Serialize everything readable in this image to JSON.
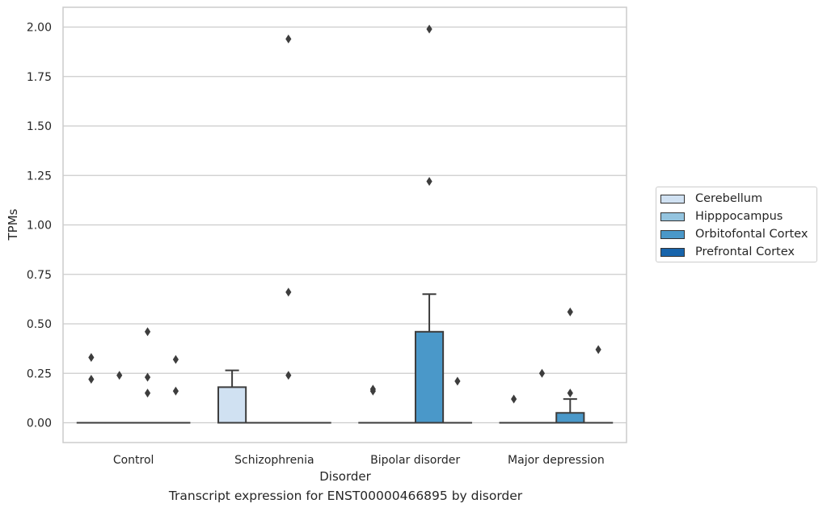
{
  "chart_data": {
    "type": "box",
    "xlabel": "Disorder",
    "ylabel": "TPMs",
    "caption": "Transcript expression for ENST00000466895 by disorder",
    "categories": [
      "Control",
      "Schizophrenia",
      "Bipolar disorder",
      "Major depression"
    ],
    "ylim": [
      -0.1,
      2.1
    ],
    "yticks": [
      "0.00",
      "0.25",
      "0.50",
      "0.75",
      "1.00",
      "1.25",
      "1.50",
      "1.75",
      "2.00"
    ],
    "ytick_values": [
      0,
      0.25,
      0.5,
      0.75,
      1.0,
      1.25,
      1.5,
      1.75,
      2.0
    ],
    "grid": "horizontal",
    "legend_placement": "outside right",
    "series": [
      {
        "name": "Cerebellum",
        "color": "#d0e1f2",
        "boxes": [
          {
            "q1": 0,
            "median": 0,
            "q3": 0,
            "whislo": 0,
            "whishi": 0,
            "fliers": [
              0.22,
              0.33
            ]
          },
          {
            "q1": 0,
            "median": 0,
            "q3": 0.18,
            "whislo": 0,
            "whishi": 0.265,
            "fliers": []
          },
          {
            "q1": 0,
            "median": 0,
            "q3": 0,
            "whislo": 0,
            "whishi": 0,
            "fliers": [
              0.16,
              0.17
            ]
          },
          {
            "q1": 0,
            "median": 0,
            "q3": 0,
            "whislo": 0,
            "whishi": 0,
            "fliers": [
              0.12
            ]
          }
        ]
      },
      {
        "name": "Hipppocampus",
        "color": "#94c4df",
        "boxes": [
          {
            "q1": 0,
            "median": 0,
            "q3": 0,
            "whislo": 0,
            "whishi": 0,
            "fliers": [
              0.24
            ]
          },
          {
            "q1": 0,
            "median": 0,
            "q3": 0,
            "whislo": 0,
            "whishi": 0,
            "fliers": []
          },
          {
            "q1": 0,
            "median": 0,
            "q3": 0,
            "whislo": 0,
            "whishi": 0,
            "fliers": []
          },
          {
            "q1": 0,
            "median": 0,
            "q3": 0,
            "whislo": 0,
            "whishi": 0,
            "fliers": [
              0.25
            ]
          }
        ]
      },
      {
        "name": "Orbitofontal Cortex",
        "color": "#4a98c9",
        "boxes": [
          {
            "q1": 0,
            "median": 0,
            "q3": 0,
            "whislo": 0,
            "whishi": 0,
            "fliers": [
              0.15,
              0.23,
              0.46
            ]
          },
          {
            "q1": 0,
            "median": 0,
            "q3": 0,
            "whislo": 0,
            "whishi": 0,
            "fliers": [
              0.24,
              0.66,
              1.94
            ]
          },
          {
            "q1": 0,
            "median": 0,
            "q3": 0.46,
            "whislo": 0,
            "whishi": 0.65,
            "fliers": [
              1.22,
              1.99
            ]
          },
          {
            "q1": 0,
            "median": 0,
            "q3": 0.05,
            "whislo": 0,
            "whishi": 0.12,
            "fliers": [
              0.15,
              0.56
            ]
          }
        ]
      },
      {
        "name": "Prefrontal Cortex",
        "color": "#1764ab",
        "boxes": [
          {
            "q1": 0,
            "median": 0,
            "q3": 0,
            "whislo": 0,
            "whishi": 0,
            "fliers": [
              0.16,
              0.32
            ]
          },
          {
            "q1": 0,
            "median": 0,
            "q3": 0,
            "whislo": 0,
            "whishi": 0,
            "fliers": []
          },
          {
            "q1": 0,
            "median": 0,
            "q3": 0,
            "whislo": 0,
            "whishi": 0,
            "fliers": [
              0.21
            ]
          },
          {
            "q1": 0,
            "median": 0,
            "q3": 0,
            "whislo": 0,
            "whishi": 0,
            "fliers": [
              0.37
            ]
          }
        ]
      }
    ]
  }
}
